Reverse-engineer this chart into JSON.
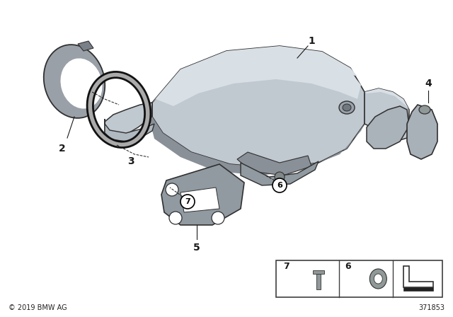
{
  "bg_color": "#ffffff",
  "copyright": "© 2019 BMW AG",
  "doc_number": "371853",
  "body_color": "#c0c8d0",
  "body_top": "#d8dfe5",
  "body_shadow": "#8a9098",
  "body_dark": "#707880",
  "outline_color": "#303030",
  "label_bg": "#ffffff",
  "label_edge": "#000000",
  "line_color": "#1a1a1a"
}
